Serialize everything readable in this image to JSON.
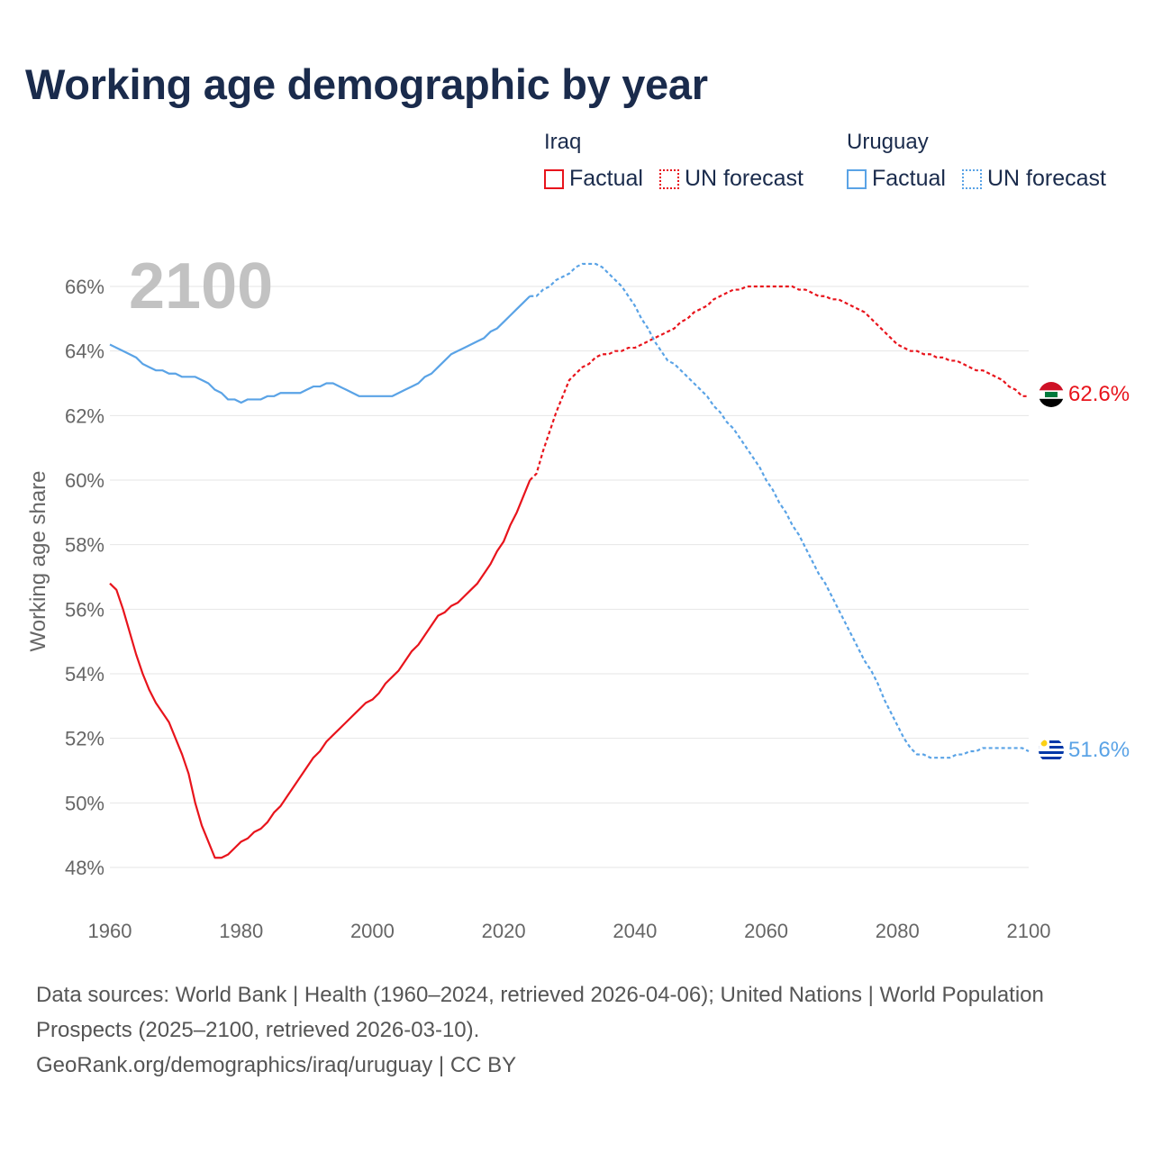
{
  "title": "Working age demographic by year",
  "legend": {
    "groups": [
      {
        "country": "Iraq",
        "color": "#e8141c",
        "factual_label": "Factual",
        "forecast_label": "UN forecast"
      },
      {
        "country": "Uruguay",
        "color": "#5aa3e6",
        "factual_label": "Factual",
        "forecast_label": "UN forecast"
      }
    ]
  },
  "year_watermark": "2100",
  "footer": {
    "sources": "Data sources: World Bank | Health (1960–2024, retrieved 2026-04-06); United Nations | World Population Prospects (2025–2100, retrieved 2026-03-10).",
    "link": "GeoRank.org/demographics/iraq/uruguay | CC BY"
  },
  "chart_data": {
    "type": "line",
    "title": "Working age demographic by year",
    "xlabel": "",
    "ylabel": "Working age share",
    "xlim": [
      1960,
      2100
    ],
    "ylim": [
      47,
      67.2
    ],
    "x_ticks": [
      1960,
      1980,
      2000,
      2020,
      2040,
      2060,
      2080,
      2100
    ],
    "y_ticks": [
      48,
      50,
      52,
      54,
      56,
      58,
      60,
      62,
      64,
      66
    ],
    "y_tick_labels": [
      "48%",
      "50%",
      "52%",
      "54%",
      "56%",
      "58%",
      "60%",
      "62%",
      "64%",
      "66%"
    ],
    "grid": true,
    "factual_until": 2024,
    "series": [
      {
        "name": "Iraq",
        "color": "#e8141c",
        "end_label": "62.6%",
        "points": [
          [
            1960,
            56.8
          ],
          [
            1961,
            56.6
          ],
          [
            1962,
            56.0
          ],
          [
            1963,
            55.3
          ],
          [
            1964,
            54.6
          ],
          [
            1965,
            54.0
          ],
          [
            1966,
            53.5
          ],
          [
            1967,
            53.1
          ],
          [
            1968,
            52.8
          ],
          [
            1969,
            52.5
          ],
          [
            1970,
            52.0
          ],
          [
            1971,
            51.5
          ],
          [
            1972,
            50.9
          ],
          [
            1973,
            50.0
          ],
          [
            1974,
            49.3
          ],
          [
            1975,
            48.8
          ],
          [
            1976,
            48.3
          ],
          [
            1977,
            48.3
          ],
          [
            1978,
            48.4
          ],
          [
            1979,
            48.6
          ],
          [
            1980,
            48.8
          ],
          [
            1981,
            48.9
          ],
          [
            1982,
            49.1
          ],
          [
            1983,
            49.2
          ],
          [
            1984,
            49.4
          ],
          [
            1985,
            49.7
          ],
          [
            1986,
            49.9
          ],
          [
            1987,
            50.2
          ],
          [
            1988,
            50.5
          ],
          [
            1989,
            50.8
          ],
          [
            1990,
            51.1
          ],
          [
            1991,
            51.4
          ],
          [
            1992,
            51.6
          ],
          [
            1993,
            51.9
          ],
          [
            1994,
            52.1
          ],
          [
            1995,
            52.3
          ],
          [
            1996,
            52.5
          ],
          [
            1997,
            52.7
          ],
          [
            1998,
            52.9
          ],
          [
            1999,
            53.1
          ],
          [
            2000,
            53.2
          ],
          [
            2001,
            53.4
          ],
          [
            2002,
            53.7
          ],
          [
            2003,
            53.9
          ],
          [
            2004,
            54.1
          ],
          [
            2005,
            54.4
          ],
          [
            2006,
            54.7
          ],
          [
            2007,
            54.9
          ],
          [
            2008,
            55.2
          ],
          [
            2009,
            55.5
          ],
          [
            2010,
            55.8
          ],
          [
            2011,
            55.9
          ],
          [
            2012,
            56.1
          ],
          [
            2013,
            56.2
          ],
          [
            2014,
            56.4
          ],
          [
            2015,
            56.6
          ],
          [
            2016,
            56.8
          ],
          [
            2017,
            57.1
          ],
          [
            2018,
            57.4
          ],
          [
            2019,
            57.8
          ],
          [
            2020,
            58.1
          ],
          [
            2021,
            58.6
          ],
          [
            2022,
            59.0
          ],
          [
            2023,
            59.5
          ],
          [
            2024,
            60.0
          ],
          [
            2025,
            60.2
          ],
          [
            2026,
            60.9
          ],
          [
            2027,
            61.5
          ],
          [
            2028,
            62.1
          ],
          [
            2029,
            62.6
          ],
          [
            2030,
            63.1
          ],
          [
            2031,
            63.3
          ],
          [
            2032,
            63.5
          ],
          [
            2033,
            63.6
          ],
          [
            2034,
            63.8
          ],
          [
            2035,
            63.9
          ],
          [
            2036,
            63.9
          ],
          [
            2037,
            64.0
          ],
          [
            2038,
            64.0
          ],
          [
            2039,
            64.1
          ],
          [
            2040,
            64.1
          ],
          [
            2041,
            64.2
          ],
          [
            2042,
            64.3
          ],
          [
            2043,
            64.4
          ],
          [
            2044,
            64.5
          ],
          [
            2045,
            64.6
          ],
          [
            2046,
            64.7
          ],
          [
            2047,
            64.9
          ],
          [
            2048,
            65.0
          ],
          [
            2049,
            65.2
          ],
          [
            2050,
            65.3
          ],
          [
            2051,
            65.4
          ],
          [
            2052,
            65.6
          ],
          [
            2053,
            65.7
          ],
          [
            2054,
            65.8
          ],
          [
            2055,
            65.9
          ],
          [
            2056,
            65.9
          ],
          [
            2057,
            66.0
          ],
          [
            2058,
            66.0
          ],
          [
            2059,
            66.0
          ],
          [
            2060,
            66.0
          ],
          [
            2061,
            66.0
          ],
          [
            2062,
            66.0
          ],
          [
            2063,
            66.0
          ],
          [
            2064,
            66.0
          ],
          [
            2065,
            65.9
          ],
          [
            2066,
            65.9
          ],
          [
            2067,
            65.8
          ],
          [
            2068,
            65.7
          ],
          [
            2069,
            65.7
          ],
          [
            2070,
            65.6
          ],
          [
            2071,
            65.6
          ],
          [
            2072,
            65.5
          ],
          [
            2073,
            65.4
          ],
          [
            2074,
            65.3
          ],
          [
            2075,
            65.2
          ],
          [
            2076,
            65.0
          ],
          [
            2077,
            64.8
          ],
          [
            2078,
            64.6
          ],
          [
            2079,
            64.4
          ],
          [
            2080,
            64.2
          ],
          [
            2081,
            64.1
          ],
          [
            2082,
            64.0
          ],
          [
            2083,
            64.0
          ],
          [
            2084,
            63.9
          ],
          [
            2085,
            63.9
          ],
          [
            2086,
            63.8
          ],
          [
            2087,
            63.8
          ],
          [
            2088,
            63.7
          ],
          [
            2089,
            63.7
          ],
          [
            2090,
            63.6
          ],
          [
            2091,
            63.5
          ],
          [
            2092,
            63.4
          ],
          [
            2093,
            63.4
          ],
          [
            2094,
            63.3
          ],
          [
            2095,
            63.2
          ],
          [
            2096,
            63.1
          ],
          [
            2097,
            62.9
          ],
          [
            2098,
            62.8
          ],
          [
            2099,
            62.6
          ],
          [
            2100,
            62.6
          ]
        ]
      },
      {
        "name": "Uruguay",
        "color": "#5aa3e6",
        "end_label": "51.6%",
        "points": [
          [
            1960,
            64.2
          ],
          [
            1961,
            64.1
          ],
          [
            1962,
            64.0
          ],
          [
            1963,
            63.9
          ],
          [
            1964,
            63.8
          ],
          [
            1965,
            63.6
          ],
          [
            1966,
            63.5
          ],
          [
            1967,
            63.4
          ],
          [
            1968,
            63.4
          ],
          [
            1969,
            63.3
          ],
          [
            1970,
            63.3
          ],
          [
            1971,
            63.2
          ],
          [
            1972,
            63.2
          ],
          [
            1973,
            63.2
          ],
          [
            1974,
            63.1
          ],
          [
            1975,
            63.0
          ],
          [
            1976,
            62.8
          ],
          [
            1977,
            62.7
          ],
          [
            1978,
            62.5
          ],
          [
            1979,
            62.5
          ],
          [
            1980,
            62.4
          ],
          [
            1981,
            62.5
          ],
          [
            1982,
            62.5
          ],
          [
            1983,
            62.5
          ],
          [
            1984,
            62.6
          ],
          [
            1985,
            62.6
          ],
          [
            1986,
            62.7
          ],
          [
            1987,
            62.7
          ],
          [
            1988,
            62.7
          ],
          [
            1989,
            62.7
          ],
          [
            1990,
            62.8
          ],
          [
            1991,
            62.9
          ],
          [
            1992,
            62.9
          ],
          [
            1993,
            63.0
          ],
          [
            1994,
            63.0
          ],
          [
            1995,
            62.9
          ],
          [
            1996,
            62.8
          ],
          [
            1997,
            62.7
          ],
          [
            1998,
            62.6
          ],
          [
            1999,
            62.6
          ],
          [
            2000,
            62.6
          ],
          [
            2001,
            62.6
          ],
          [
            2002,
            62.6
          ],
          [
            2003,
            62.6
          ],
          [
            2004,
            62.7
          ],
          [
            2005,
            62.8
          ],
          [
            2006,
            62.9
          ],
          [
            2007,
            63.0
          ],
          [
            2008,
            63.2
          ],
          [
            2009,
            63.3
          ],
          [
            2010,
            63.5
          ],
          [
            2011,
            63.7
          ],
          [
            2012,
            63.9
          ],
          [
            2013,
            64.0
          ],
          [
            2014,
            64.1
          ],
          [
            2015,
            64.2
          ],
          [
            2016,
            64.3
          ],
          [
            2017,
            64.4
          ],
          [
            2018,
            64.6
          ],
          [
            2019,
            64.7
          ],
          [
            2020,
            64.9
          ],
          [
            2021,
            65.1
          ],
          [
            2022,
            65.3
          ],
          [
            2023,
            65.5
          ],
          [
            2024,
            65.7
          ],
          [
            2025,
            65.7
          ],
          [
            2026,
            65.9
          ],
          [
            2027,
            66.0
          ],
          [
            2028,
            66.2
          ],
          [
            2029,
            66.3
          ],
          [
            2030,
            66.4
          ],
          [
            2031,
            66.6
          ],
          [
            2032,
            66.7
          ],
          [
            2033,
            66.7
          ],
          [
            2034,
            66.7
          ],
          [
            2035,
            66.6
          ],
          [
            2036,
            66.4
          ],
          [
            2037,
            66.2
          ],
          [
            2038,
            66.0
          ],
          [
            2039,
            65.7
          ],
          [
            2040,
            65.4
          ],
          [
            2041,
            65.0
          ],
          [
            2042,
            64.7
          ],
          [
            2043,
            64.3
          ],
          [
            2044,
            64.0
          ],
          [
            2045,
            63.7
          ],
          [
            2046,
            63.6
          ],
          [
            2047,
            63.4
          ],
          [
            2048,
            63.2
          ],
          [
            2049,
            63.0
          ],
          [
            2050,
            62.8
          ],
          [
            2051,
            62.6
          ],
          [
            2052,
            62.3
          ],
          [
            2053,
            62.1
          ],
          [
            2054,
            61.8
          ],
          [
            2055,
            61.6
          ],
          [
            2056,
            61.3
          ],
          [
            2057,
            61.0
          ],
          [
            2058,
            60.7
          ],
          [
            2059,
            60.4
          ],
          [
            2060,
            60.0
          ],
          [
            2061,
            59.7
          ],
          [
            2062,
            59.3
          ],
          [
            2063,
            59.0
          ],
          [
            2064,
            58.6
          ],
          [
            2065,
            58.3
          ],
          [
            2066,
            57.9
          ],
          [
            2067,
            57.5
          ],
          [
            2068,
            57.1
          ],
          [
            2069,
            56.8
          ],
          [
            2070,
            56.4
          ],
          [
            2071,
            56.0
          ],
          [
            2072,
            55.6
          ],
          [
            2073,
            55.2
          ],
          [
            2074,
            54.8
          ],
          [
            2075,
            54.4
          ],
          [
            2076,
            54.1
          ],
          [
            2077,
            53.7
          ],
          [
            2078,
            53.2
          ],
          [
            2079,
            52.8
          ],
          [
            2080,
            52.4
          ],
          [
            2081,
            52.0
          ],
          [
            2082,
            51.7
          ],
          [
            2083,
            51.5
          ],
          [
            2084,
            51.5
          ],
          [
            2085,
            51.4
          ],
          [
            2086,
            51.4
          ],
          [
            2087,
            51.4
          ],
          [
            2088,
            51.4
          ],
          [
            2089,
            51.5
          ],
          [
            2090,
            51.5
          ],
          [
            2091,
            51.6
          ],
          [
            2092,
            51.6
          ],
          [
            2093,
            51.7
          ],
          [
            2094,
            51.7
          ],
          [
            2095,
            51.7
          ],
          [
            2096,
            51.7
          ],
          [
            2097,
            51.7
          ],
          [
            2098,
            51.7
          ],
          [
            2099,
            51.7
          ],
          [
            2100,
            51.6
          ]
        ]
      }
    ]
  }
}
